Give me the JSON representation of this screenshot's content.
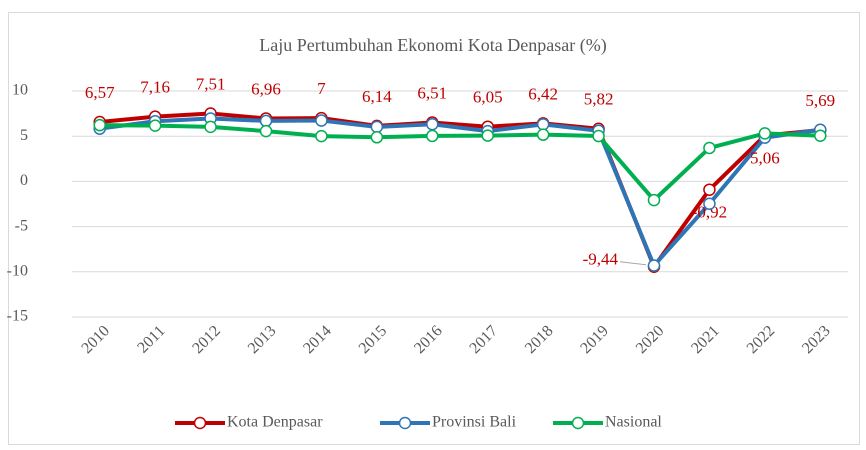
{
  "chart_data": {
    "type": "line",
    "title": "Laju Pertumbuhan Ekonomi Kota Denpasar (%)",
    "categories": [
      "2010",
      "2011",
      "2012",
      "2013",
      "2014",
      "2015",
      "2016",
      "2017",
      "2018",
      "2019",
      "2020",
      "2021",
      "2022",
      "2023"
    ],
    "series": [
      {
        "name": "Kota Denpasar",
        "color": "#c00000",
        "values": [
          6.57,
          7.16,
          7.51,
          6.96,
          7,
          6.14,
          6.51,
          6.05,
          6.42,
          5.82,
          -9.44,
          -0.92,
          5.06,
          5.69
        ],
        "value_labels": [
          "6,57",
          "7,16",
          "7,51",
          "6,96",
          "7",
          "6,14",
          "6,51",
          "6,05",
          "6,42",
          "5,82",
          "-9,44",
          "-0,92",
          "5,06",
          "5,69"
        ]
      },
      {
        "name": "Provinsi Bali",
        "color": "#2e75b6",
        "values": [
          5.83,
          6.66,
          6.96,
          6.69,
          6.73,
          6.03,
          6.32,
          5.56,
          6.31,
          5.6,
          -9.31,
          -2.47,
          4.84,
          5.71
        ]
      },
      {
        "name": "Nasional",
        "color": "#00b050",
        "values": [
          6.22,
          6.17,
          6.03,
          5.56,
          5.01,
          4.88,
          5.03,
          5.07,
          5.17,
          5.02,
          -2.07,
          3.7,
          5.31,
          5.05
        ]
      }
    ],
    "ylim": [
      -15,
      10
    ],
    "yticks": [
      -15,
      -10,
      -5,
      0,
      5,
      10
    ],
    "grid": true,
    "legend": "bottom"
  }
}
